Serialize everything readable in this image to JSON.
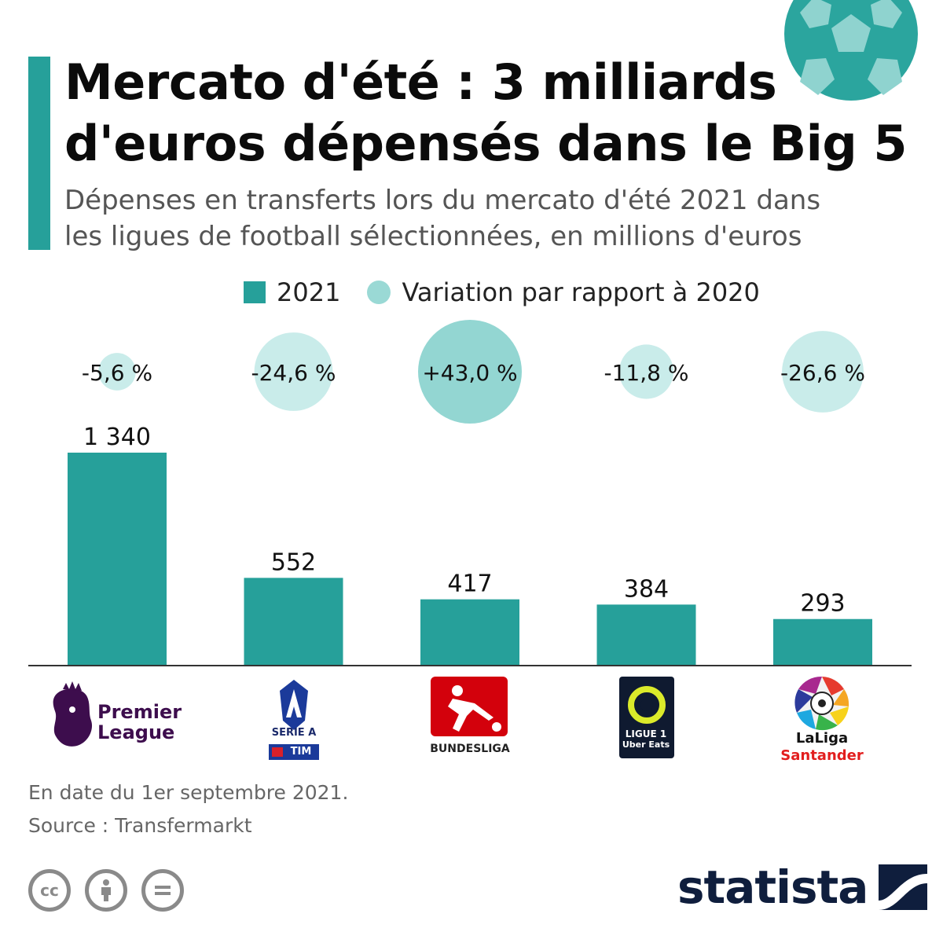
{
  "header": {
    "title_line1": "Mercato d'été : 3 milliards",
    "title_line2": "d'euros dépensés dans le Big 5",
    "subtitle_line1": "Dépenses en transferts lors du mercato d'été 2021 dans",
    "subtitle_line2": "les ligues de football sélectionnées, en millions d'euros"
  },
  "legend": {
    "bar_label": "2021",
    "bubble_label": "Variation par rapport à 2020"
  },
  "colors": {
    "bar": "#26a09a",
    "bubble_positive": "#93d6d2",
    "bubble_negative": "#c9ecea",
    "accent": "#26a09a",
    "brand": "#0f1e3d"
  },
  "chart_data": {
    "type": "bar",
    "categories": [
      "Premier League",
      "Serie A",
      "Bundesliga",
      "Ligue 1",
      "LaLiga"
    ],
    "series": [
      {
        "name": "2021",
        "values": [
          1340,
          552,
          417,
          384,
          293
        ]
      }
    ],
    "variation": {
      "name": "Variation par rapport à 2020",
      "values": [
        -5.6,
        -24.6,
        43.0,
        -11.8,
        -26.6
      ]
    },
    "value_labels": [
      "1 340",
      "552",
      "417",
      "384",
      "293"
    ],
    "variation_labels": [
      "-5,6 %",
      "-24,6 %",
      "+43,0 %",
      "-11,8 %",
      "-26,6 %"
    ],
    "ylim": [
      0,
      1340
    ],
    "grid": false,
    "legend_position": "top"
  },
  "logos": {
    "premier_league_line1": "Premier",
    "premier_league_line2": "League",
    "serie_a": "SERIE A",
    "tim": "TIM",
    "bundesliga": "BUNDESLIGA",
    "ligue1": "LIGUE 1",
    "ligue1_sponsor": "Uber Eats",
    "laliga": "LaLiga",
    "santander": "Santander"
  },
  "footer": {
    "note": "En date du 1er septembre 2021.",
    "source": "Source : Transfermarkt",
    "brand": "statista",
    "cc_icon": "cc-icon",
    "attribution_icon": "attribution-icon",
    "noderivs_icon": "noderivs-icon"
  }
}
